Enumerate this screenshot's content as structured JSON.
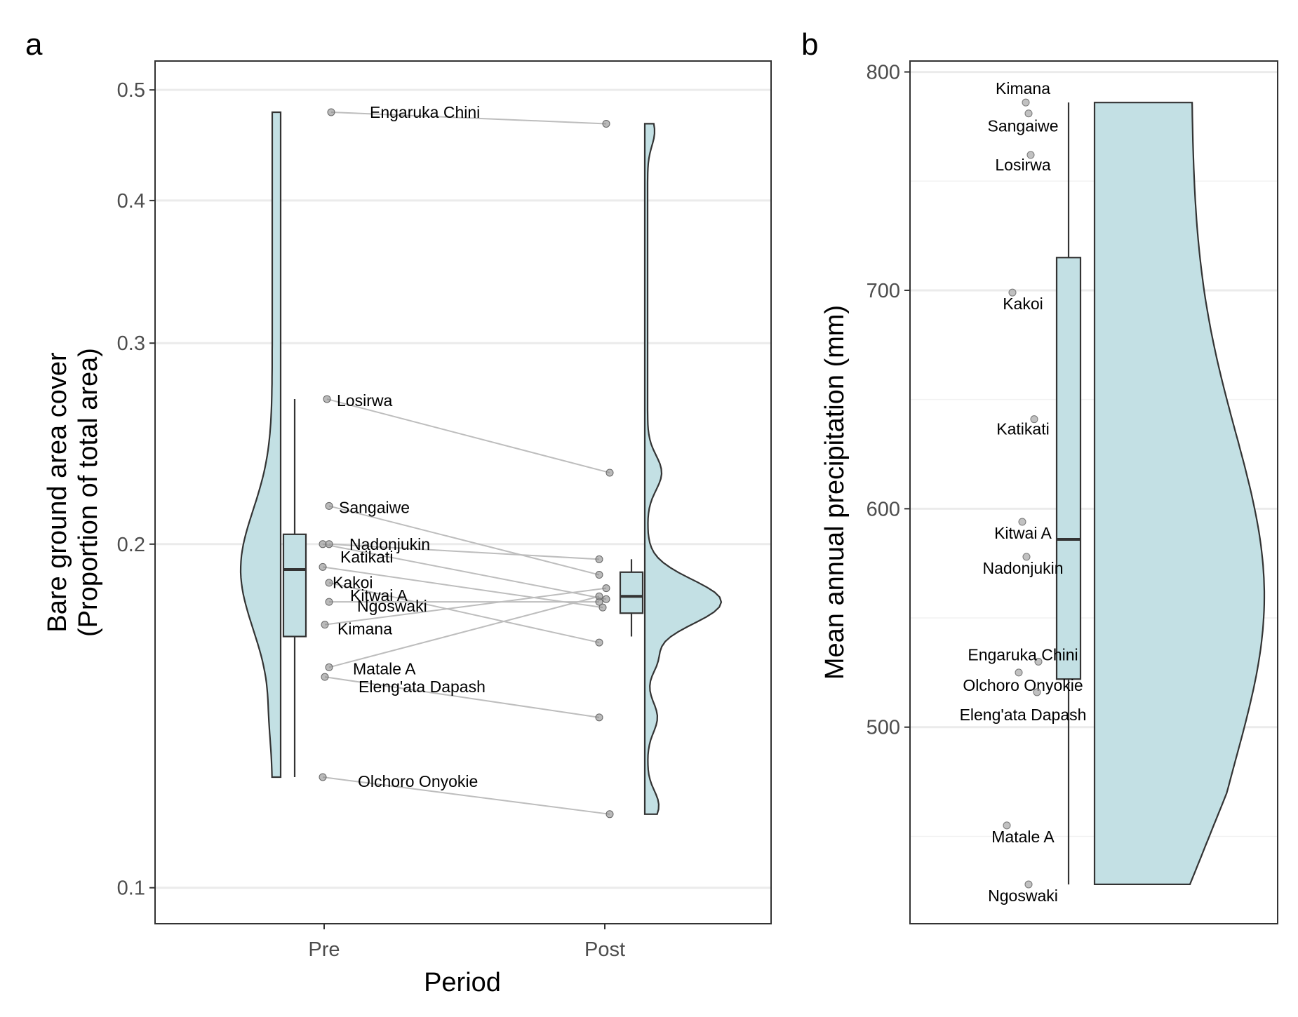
{
  "chart_data": [
    {
      "panel": "a",
      "type": "raincloud",
      "xlabel": "Period",
      "ylabel": "Bare ground area cover",
      "ylabel2": "(Proportion of total area)",
      "scale": "log",
      "ylim": [
        0.093,
        0.53
      ],
      "yticks": [
        0.1,
        0.2,
        0.3,
        0.4,
        0.5
      ],
      "ytick_labels": [
        "0.1",
        "0.2",
        "0.3",
        "0.4",
        "0.5"
      ],
      "categories": [
        "Pre",
        "Post"
      ],
      "fill_color": "#c3e0e4",
      "sites": [
        {
          "name": "Engaruka Chini",
          "pre": 0.478,
          "post": 0.467
        },
        {
          "name": "Losirwa",
          "pre": 0.268,
          "post": 0.231
        },
        {
          "name": "Sangaiwe",
          "pre": 0.216,
          "post": 0.188
        },
        {
          "name": "Nadonjukin",
          "pre": 0.2,
          "post": 0.179
        },
        {
          "name": "Katikati",
          "pre": 0.2,
          "post": 0.194
        },
        {
          "name": "Kakoi",
          "pre": 0.191,
          "post": 0.176
        },
        {
          "name": "Kitwai A",
          "pre": 0.185,
          "post": 0.164
        },
        {
          "name": "Ngoswaki",
          "pre": 0.178,
          "post": 0.178
        },
        {
          "name": "Kimana",
          "pre": 0.17,
          "post": 0.183
        },
        {
          "name": "Matale A",
          "pre": 0.156,
          "post": 0.18
        },
        {
          "name": "Eleng'ata Dapash",
          "pre": 0.153,
          "post": 0.141
        },
        {
          "name": "Olchoro Onyokie",
          "pre": 0.125,
          "post": 0.116
        }
      ],
      "pre_box": {
        "min": 0.125,
        "q1": 0.166,
        "median": 0.19,
        "q3": 0.204,
        "max": 0.268
      },
      "post_box": {
        "min": 0.166,
        "q1": 0.174,
        "median": 0.18,
        "q3": 0.189,
        "max": 0.194
      }
    },
    {
      "panel": "b",
      "type": "raincloud",
      "ylabel": "Mean annual precipitation (mm)",
      "ylim": [
        410,
        805
      ],
      "yticks": [
        500,
        600,
        700,
        800
      ],
      "ytick_labels": [
        "500",
        "600",
        "700",
        "800"
      ],
      "fill_color": "#c3e0e4",
      "sites": [
        {
          "name": "Kimana",
          "value": 786
        },
        {
          "name": "Sangaiwe",
          "value": 781
        },
        {
          "name": "Losirwa",
          "value": 762
        },
        {
          "name": "Kakoi",
          "value": 699
        },
        {
          "name": "Katikati",
          "value": 641
        },
        {
          "name": "Kitwai A",
          "value": 594
        },
        {
          "name": "Nadonjukin",
          "value": 578
        },
        {
          "name": "Engaruka Chini",
          "value": 530
        },
        {
          "name": "Olchoro Onyokie",
          "value": 525
        },
        {
          "name": "Eleng'ata Dapash",
          "value": 516
        },
        {
          "name": "Matale A",
          "value": 455
        },
        {
          "name": "Ngoswaki",
          "value": 428
        }
      ],
      "box": {
        "min": 428,
        "q1": 522,
        "median": 586,
        "q3": 715,
        "max": 786
      }
    }
  ],
  "panel_labels": {
    "a": "a",
    "b": "b"
  }
}
